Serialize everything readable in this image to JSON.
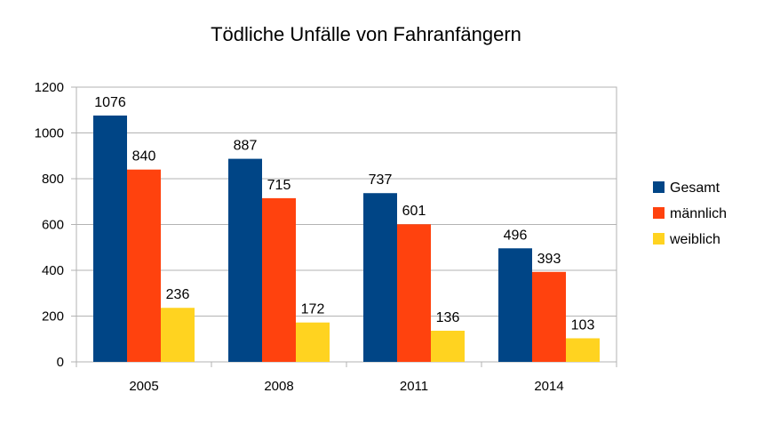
{
  "chart_data": {
    "type": "bar",
    "title": "Tödliche Unfälle von Fahranfängern",
    "categories": [
      "2005",
      "2008",
      "2011",
      "2014"
    ],
    "series": [
      {
        "name": "Gesamt",
        "color": "#004586",
        "values": [
          1076,
          887,
          737,
          496
        ]
      },
      {
        "name": "männlich",
        "color": "#ff420e",
        "values": [
          840,
          715,
          601,
          393
        ]
      },
      {
        "name": "weiblich",
        "color": "#ffd320",
        "values": [
          236,
          172,
          136,
          103
        ]
      }
    ],
    "ylim": [
      0,
      1200
    ],
    "yticks": [
      "0",
      "200",
      "400",
      "600",
      "800",
      "1000",
      "1200"
    ],
    "grid": true,
    "legend_position": "right"
  }
}
